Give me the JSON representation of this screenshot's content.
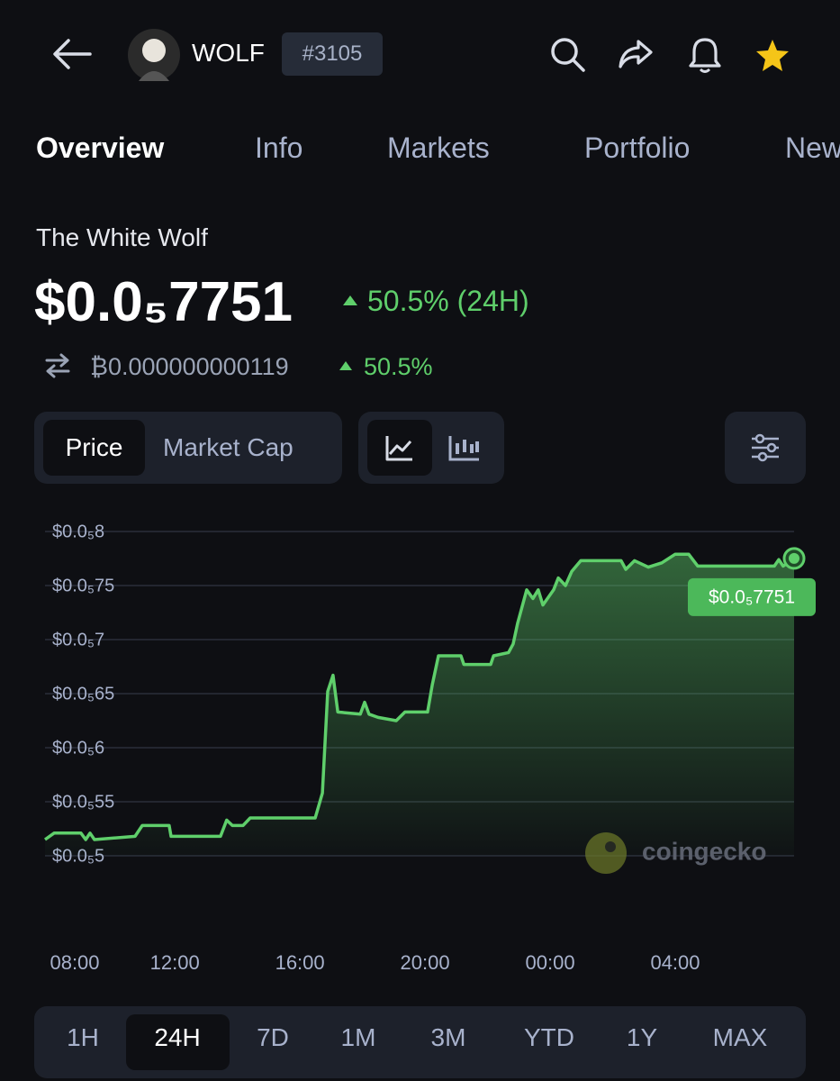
{
  "header": {
    "symbol": "WOLF",
    "rank": "#3105"
  },
  "tabs": [
    "Overview",
    "Info",
    "Markets",
    "Portfolio",
    "News"
  ],
  "coin": {
    "name": "The White Wolf",
    "price": "$0.0₅7751",
    "change_24h": "50.5% (24H)",
    "btc_price": "₿0.000000000119",
    "btc_change": "50.5%"
  },
  "chart_toggle": [
    "Price",
    "Market Cap"
  ],
  "chart": {
    "type": "line",
    "color": "#5fcf6b",
    "watermark": "coingecko",
    "current_label": "$0.0₅7751",
    "x": [
      7.85,
      8.14,
      9.0,
      9.15,
      9.29,
      9.43,
      10.73,
      10.96,
      11.82,
      11.88,
      13.46,
      13.66,
      13.84,
      14.18,
      14.41,
      16.49,
      16.72,
      16.89,
      17.06,
      17.21,
      17.93,
      18.07,
      18.21,
      18.5,
      19.08,
      19.36,
      20.08,
      20.23,
      20.43,
      21.15,
      21.24,
      22.1,
      22.19,
      22.67,
      22.82,
      22.96,
      23.25,
      23.45,
      23.62,
      23.77,
      24.11,
      24.26,
      24.49,
      24.69,
      24.98,
      26.27,
      26.42,
      26.7,
      27.14,
      27.57,
      28.0,
      28.43,
      28.72,
      31.17,
      31.31,
      31.45,
      31.8
    ],
    "values": [
      5.15e-06,
      5.21e-06,
      5.21e-06,
      5.15e-06,
      5.21e-06,
      5.15e-06,
      5.18e-06,
      5.28e-06,
      5.28e-06,
      5.18e-06,
      5.18e-06,
      5.33e-06,
      5.28e-06,
      5.28e-06,
      5.35e-06,
      5.35e-06,
      5.58e-06,
      6.52e-06,
      6.67e-06,
      6.33e-06,
      6.31e-06,
      6.42e-06,
      6.31e-06,
      6.28e-06,
      6.25e-06,
      6.33e-06,
      6.33e-06,
      6.58e-06,
      6.85e-06,
      6.85e-06,
      6.77e-06,
      6.77e-06,
      6.85e-06,
      6.88e-06,
      6.96e-06,
      7.15e-06,
      7.46e-06,
      7.38e-06,
      7.46e-06,
      7.32e-06,
      7.46e-06,
      7.57e-06,
      7.5e-06,
      7.63e-06,
      7.73e-06,
      7.73e-06,
      7.65e-06,
      7.73e-06,
      7.67e-06,
      7.71e-06,
      7.79e-06,
      7.79e-06,
      7.68e-06,
      7.68e-06,
      7.74e-06,
      7.68e-06,
      7.751e-06
    ],
    "xlim": [
      7.85,
      31.8
    ],
    "xticks": [
      {
        "value": 8,
        "label": "08:00"
      },
      {
        "value": 12,
        "label": "12:00"
      },
      {
        "value": 16,
        "label": "16:00"
      },
      {
        "value": 20,
        "label": "20:00"
      },
      {
        "value": 24,
        "label": "00:00"
      },
      {
        "value": 28,
        "label": "04:00"
      }
    ],
    "ylim": [
      5e-06,
      8e-06
    ],
    "yticks": [
      {
        "value": 8e-06,
        "label": "$0.0₅8"
      },
      {
        "value": 7.5e-06,
        "label": "$0.0₅75"
      },
      {
        "value": 7e-06,
        "label": "$0.0₅7"
      },
      {
        "value": 6.5e-06,
        "label": "$0.0₅65"
      },
      {
        "value": 6e-06,
        "label": "$0.0₅6"
      },
      {
        "value": 5.5e-06,
        "label": "$0.0₅55"
      },
      {
        "value": 5e-06,
        "label": "$0.0₅5"
      }
    ],
    "grid": true
  },
  "time_ranges": [
    "1H",
    "24H",
    "7D",
    "1M",
    "3M",
    "YTD",
    "1Y",
    "MAX"
  ]
}
